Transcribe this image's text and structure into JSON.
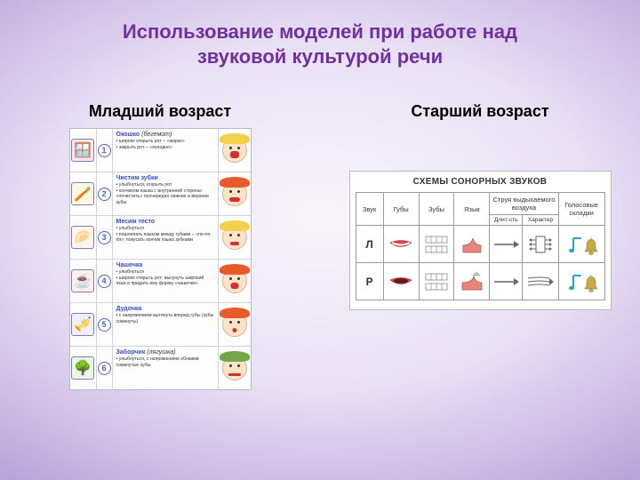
{
  "title_line1": "Использование моделей при работе над",
  "title_line2": "звуковой культурой речи",
  "left": {
    "heading": "Младший возраст",
    "rows": [
      {
        "num": "1",
        "icon_bg": "#f3e6ff",
        "icon_glyph": "🪟",
        "title": "Окошко",
        "note": "(бегемот)",
        "bullet1": "• широко открыть рот – «жарко»",
        "bullet2": "• закрыть рот – «холодно»",
        "hair": "#f3d14a",
        "mouth_w": 10,
        "mouth_h": 8
      },
      {
        "num": "2",
        "icon_bg": "#fff7e0",
        "icon_glyph": "🪥",
        "title": "Чистим зубки",
        "note": "",
        "bullet1": "• улыбнуться, открыть рот",
        "bullet2": "• кончиком языка с внутренней стороны «почистить» поочередно нижние и верхние зубы",
        "hair": "#e85a2a",
        "mouth_w": 12,
        "mouth_h": 5
      },
      {
        "num": "3",
        "icon_bg": "#fff5e8",
        "icon_glyph": "🥟",
        "title": "Месим тесто",
        "note": "",
        "bullet1": "• улыбнуться",
        "bullet2": "• пошлепать языком между губами – «пя-пя-пя»; покусать кончик языка зубками",
        "hair": "#f3d14a",
        "mouth_w": 10,
        "mouth_h": 4
      },
      {
        "num": "4",
        "icon_bg": "#ffeef0",
        "icon_glyph": "☕",
        "title": "Чашечка",
        "note": "",
        "bullet1": "• улыбнуться",
        "bullet2": "• широко открыть рот; высунуть широкий язык и придать ему форму «чашечки»",
        "hair": "#e85a2a",
        "mouth_w": 9,
        "mouth_h": 7
      },
      {
        "num": "5",
        "icon_bg": "#eef0ff",
        "icon_glyph": "🎺",
        "title": "Дудочка",
        "note": "",
        "bullet1": "• с напряжением вытянуть вперед губы (зубы сомкнуты)",
        "bullet2": "",
        "hair": "#e85a2a",
        "mouth_w": 5,
        "mouth_h": 5
      },
      {
        "num": "6",
        "icon_bg": "#e8f7e8",
        "icon_glyph": "🌳",
        "title": "Заборчик",
        "note": "(лягушка)",
        "bullet1": "• улыбнуться, с напряжением обнажив сомкнутые зубы",
        "bullet2": "",
        "hair": "#72a848",
        "mouth_w": 14,
        "mouth_h": 3
      }
    ]
  },
  "right": {
    "heading": "Старший возраст",
    "card_title": "СХЕМЫ СОНОРНЫХ ЗВУКОВ",
    "cols": {
      "c1": "Звук",
      "c2": "Губы",
      "c3": "Зубы",
      "c4": "Язык",
      "c5": "Струя выдыхаемого воздуха",
      "c5a": "Длит-сть",
      "c5b": "Характер",
      "c6": "Голосовые складки"
    },
    "rows": {
      "r1": "Л",
      "r2": "Р"
    },
    "colors": {
      "lips": "#d94a4a",
      "teeth_border": "#777",
      "teeth_fill": "#fff",
      "tongue": "#e8847a",
      "arrow": "#666",
      "note": "#2aa0d8",
      "bell": "#c9a84a"
    }
  }
}
